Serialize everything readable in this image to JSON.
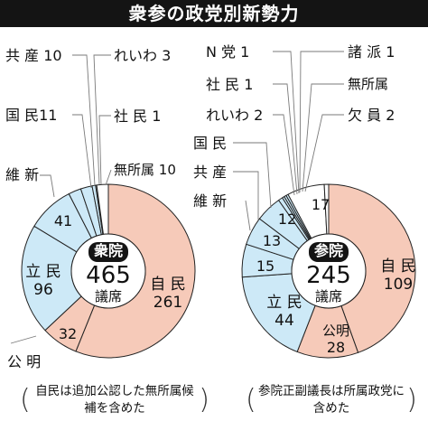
{
  "title": "衆参の政党別新勢力",
  "colors": {
    "ldp": "#f6cab9",
    "komeito": "#f6cab9",
    "cdp": "#cde9f7",
    "other": "#ffffff",
    "stroke": "#222222",
    "leader": "#7a7a7a"
  },
  "chart_data": [
    {
      "type": "pie",
      "variant": "donut",
      "center_label": {
        "house": "衆院",
        "total": "465",
        "unit": "議席"
      },
      "slices": [
        {
          "name": "自民",
          "value": 261,
          "label_inside": true,
          "color_key": "ldp"
        },
        {
          "name": "公明",
          "value": 32,
          "label_inside": false,
          "color_key": "komeito"
        },
        {
          "name": "立民",
          "value": 96,
          "label_inside": true,
          "color_key": "cdp"
        },
        {
          "name": "維新",
          "value": 41,
          "label_inside": false,
          "color_key": "cdp"
        },
        {
          "name": "国民",
          "value": 11,
          "label_inside": false,
          "color_key": "cdp"
        },
        {
          "name": "共産",
          "value": 10,
          "label_inside": false,
          "color_key": "cdp"
        },
        {
          "name": "れいわ",
          "value": 3,
          "label_inside": false,
          "color_key": "cdp"
        },
        {
          "name": "社民",
          "value": 1,
          "label_inside": false,
          "color_key": "cdp"
        },
        {
          "name": "無所属",
          "value": 10,
          "label_inside": false,
          "color_key": "other"
        }
      ],
      "note": "自民は追加公認した無所属候補を含めた"
    },
    {
      "type": "pie",
      "variant": "donut",
      "center_label": {
        "house": "参院",
        "total": "245",
        "unit": "議席"
      },
      "slices": [
        {
          "name": "自民",
          "value": 109,
          "label_inside": true,
          "color_key": "ldp"
        },
        {
          "name": "公明",
          "value": 28,
          "label_inside": true,
          "color_key": "komeito"
        },
        {
          "name": "立民",
          "value": 44,
          "label_inside": true,
          "color_key": "cdp"
        },
        {
          "name": "維新",
          "value": 15,
          "label_inside": false,
          "color_key": "cdp"
        },
        {
          "name": "共産",
          "value": 13,
          "label_inside": false,
          "color_key": "cdp"
        },
        {
          "name": "国民",
          "value": 12,
          "label_inside": false,
          "color_key": "cdp"
        },
        {
          "name": "れいわ",
          "value": 2,
          "label_inside": false,
          "color_key": "cdp"
        },
        {
          "name": "社民",
          "value": 1,
          "label_inside": false,
          "color_key": "cdp"
        },
        {
          "name": "N党",
          "value": 1,
          "label_inside": false,
          "color_key": "cdp"
        },
        {
          "name": "諸派",
          "value": 1,
          "label_inside": false,
          "color_key": "cdp"
        },
        {
          "name": "無所属",
          "value": 17,
          "label_inside": false,
          "color_key": "other"
        },
        {
          "name": "欠員",
          "value": 2,
          "label_inside": false,
          "color_key": "other"
        }
      ],
      "note": "参院正副議長は所属政党に含めた"
    }
  ],
  "labels": {
    "shu": {
      "kyosan": {
        "name": "共 産",
        "value": "10"
      },
      "reiwa": {
        "name": "れいわ",
        "value": "3"
      },
      "kokumin": {
        "name": "国 民",
        "value": "11"
      },
      "shamin": {
        "name": "社 民",
        "value": "1"
      },
      "ishin_name": "維 新",
      "ishin_value": "41",
      "mushozoku": {
        "name": "無所属",
        "value": "10"
      },
      "cdp_name": "立 民",
      "cdp_value": "96",
      "ldp_name": "自 民",
      "ldp_value": "261",
      "komeito_value": "32",
      "komeito_name": "公 明"
    },
    "san": {
      "nto": {
        "name": "N 党",
        "value": "1"
      },
      "shoha": {
        "name": "諸 派",
        "value": "1"
      },
      "shamin": {
        "name": "社 民",
        "value": "1"
      },
      "mushozoku_name": "無所属",
      "reiwa": {
        "name": "れいわ",
        "value": "2"
      },
      "ketsuin": {
        "name": "欠 員",
        "value": "2"
      },
      "kokumin_name": "国 民",
      "kyosan_name": "共 産",
      "ishin_name": "維 新",
      "kokumin_value": "12",
      "mushozoku_value": "17",
      "kyosan_value": "13",
      "ishin_value": "15",
      "cdp_name": "立 民",
      "cdp_value": "44",
      "ldp_name": "自 民",
      "ldp_value": "109",
      "komeito_name": "公明",
      "komeito_value": "28"
    }
  }
}
